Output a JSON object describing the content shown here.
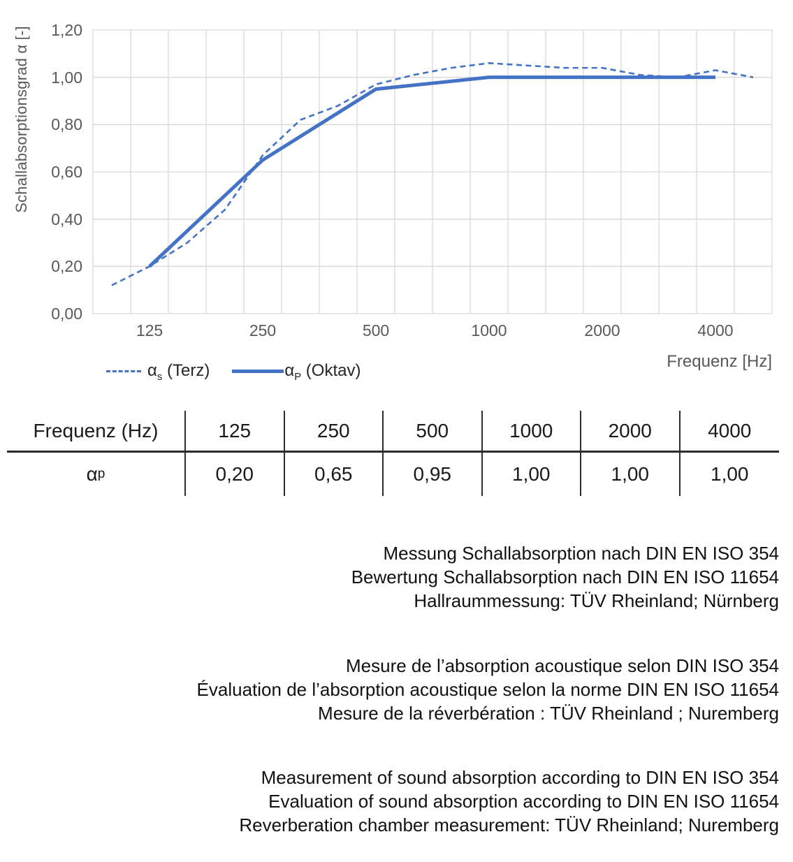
{
  "chart_data": {
    "type": "line",
    "title": "",
    "xlabel": "Frequenz [Hz]",
    "ylabel": "Schallabsorptionsgrad α [-]",
    "x_scale": "log-category (third-octave bands)",
    "x_categories": [
      100,
      125,
      160,
      200,
      250,
      315,
      400,
      500,
      630,
      800,
      1000,
      1250,
      1600,
      2000,
      2500,
      3150,
      4000,
      5000
    ],
    "x_tick_labels": [
      "125",
      "250",
      "500",
      "1000",
      "2000",
      "4000"
    ],
    "x_tick_indices": [
      1,
      4,
      7,
      10,
      13,
      16
    ],
    "y_tick_labels": [
      "0,00",
      "0,20",
      "0,40",
      "0,60",
      "0,80",
      "1,00",
      "1,20"
    ],
    "y_tick_values": [
      0,
      0.2,
      0.4,
      0.6,
      0.8,
      1.0,
      1.2
    ],
    "ylim": [
      0,
      1.2
    ],
    "grid": true,
    "legend_position": "bottom-left",
    "series": [
      {
        "name": "αs (Terz)",
        "style": "dashed",
        "color": "#4472C4",
        "x_indices": [
          0,
          1,
          2,
          3,
          4,
          5,
          6,
          7,
          8,
          9,
          10,
          11,
          12,
          13,
          14,
          15,
          16,
          17
        ],
        "x": [
          100,
          125,
          160,
          200,
          250,
          315,
          400,
          500,
          630,
          800,
          1000,
          1250,
          1600,
          2000,
          2500,
          3150,
          4000,
          5000
        ],
        "values": [
          0.12,
          0.2,
          0.3,
          0.44,
          0.67,
          0.82,
          0.88,
          0.97,
          1.01,
          1.04,
          1.06,
          1.05,
          1.04,
          1.04,
          1.01,
          1.0,
          1.03,
          1.0
        ]
      },
      {
        "name": "αP (Oktav)",
        "style": "solid",
        "color": "#4472C4",
        "x_indices": [
          1,
          4,
          7,
          10,
          13,
          16
        ],
        "x": [
          125,
          250,
          500,
          1000,
          2000,
          4000
        ],
        "values": [
          0.2,
          0.65,
          0.95,
          1.0,
          1.0,
          1.0
        ]
      }
    ]
  },
  "axes": {
    "y_title": "Schallabsorptionsgrad α [-]",
    "x_title": "Frequenz [Hz]"
  },
  "legend": {
    "terz": {
      "symbol": "α",
      "sub": "s",
      "rest": " (Terz)"
    },
    "oktav": {
      "symbol": "α",
      "sub": "P",
      "rest": " (Oktav)"
    }
  },
  "table": {
    "header_label": "Frequenz (Hz)",
    "row_symbol": "α",
    "row_sub": "p",
    "frequencies": [
      "125",
      "250",
      "500",
      "1000",
      "2000",
      "4000"
    ],
    "values": [
      "0,20",
      "0,65",
      "0,95",
      "1,00",
      "1,00",
      "1,00"
    ]
  },
  "texts": {
    "de": [
      "Messung Schallabsorption nach DIN EN ISO 354",
      "Bewertung Schallabsorption nach DIN EN ISO 11654",
      "Hallraummessung: TÜV Rheinland; Nürnberg"
    ],
    "fr": [
      "Mesure de l’absorption acoustique selon DIN ISO 354",
      "Évaluation de l’absorption acoustique selon la norme DIN EN ISO 11654",
      "Mesure de la réverbération : TÜV Rheinland ; Nuremberg"
    ],
    "en": [
      "Measurement of sound absorption according to DIN EN ISO 354",
      "Evaluation of sound absorption according to DIN EN ISO 11654",
      "Reverberation chamber measurement: TÜV Rheinland; Nuremberg"
    ]
  },
  "colors": {
    "series_blue": "#4472C4",
    "grid": "#d9d9d9",
    "axis_text": "#595959",
    "legend_text": "#262626",
    "table_line": "#2b2b2b",
    "body_text": "#111111"
  }
}
